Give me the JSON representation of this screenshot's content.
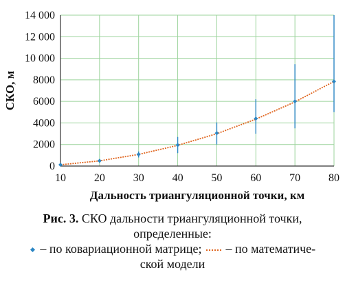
{
  "colors": {
    "grid": "#9bd39b",
    "axis": "#333333",
    "model_line": "#e0651e",
    "covariance": "#2b86c4"
  },
  "chart_data": {
    "type": "line",
    "xlabel": "Дальность триангуляционной точки, км",
    "ylabel": "СКО, м",
    "xlim": [
      10,
      80
    ],
    "ylim": [
      0,
      14000
    ],
    "x_ticks": [
      "10",
      "20",
      "30",
      "40",
      "50",
      "60",
      "70",
      "80"
    ],
    "y_ticks": [
      "0",
      "2000",
      "4000",
      "6000",
      "8000",
      "10 000",
      "12 000",
      "14 000"
    ],
    "y_tick_values": [
      0,
      2000,
      4000,
      6000,
      8000,
      10000,
      12000,
      14000
    ],
    "grid": true,
    "series": [
      {
        "name": "по математической модели",
        "style": "dotted-line",
        "x": [
          10,
          20,
          30,
          40,
          50,
          60,
          70,
          80
        ],
        "values": [
          120,
          480,
          1080,
          1920,
          3000,
          4350,
          5950,
          7850
        ]
      },
      {
        "name": "по ковариационной матрице",
        "style": "diamond-with-error-bars",
        "x": [
          10,
          20,
          30,
          40,
          50,
          60,
          70,
          80
        ],
        "values": [
          120,
          490,
          1090,
          1950,
          3050,
          4400,
          6000,
          7850
        ],
        "error_low": [
          60,
          300,
          800,
          1200,
          2000,
          3000,
          3500,
          5000
        ],
        "error_high": [
          180,
          650,
          1350,
          2700,
          4050,
          6200,
          9450,
          14000
        ]
      }
    ]
  },
  "caption": {
    "label": "Рис. 3.",
    "line1": " СКО дальности триангуляционной точки,",
    "line2": "определенные:",
    "legend_cov": " – по ковариационной матрице; ",
    "legend_model": " – по математиче-",
    "line4": "ской модели"
  }
}
